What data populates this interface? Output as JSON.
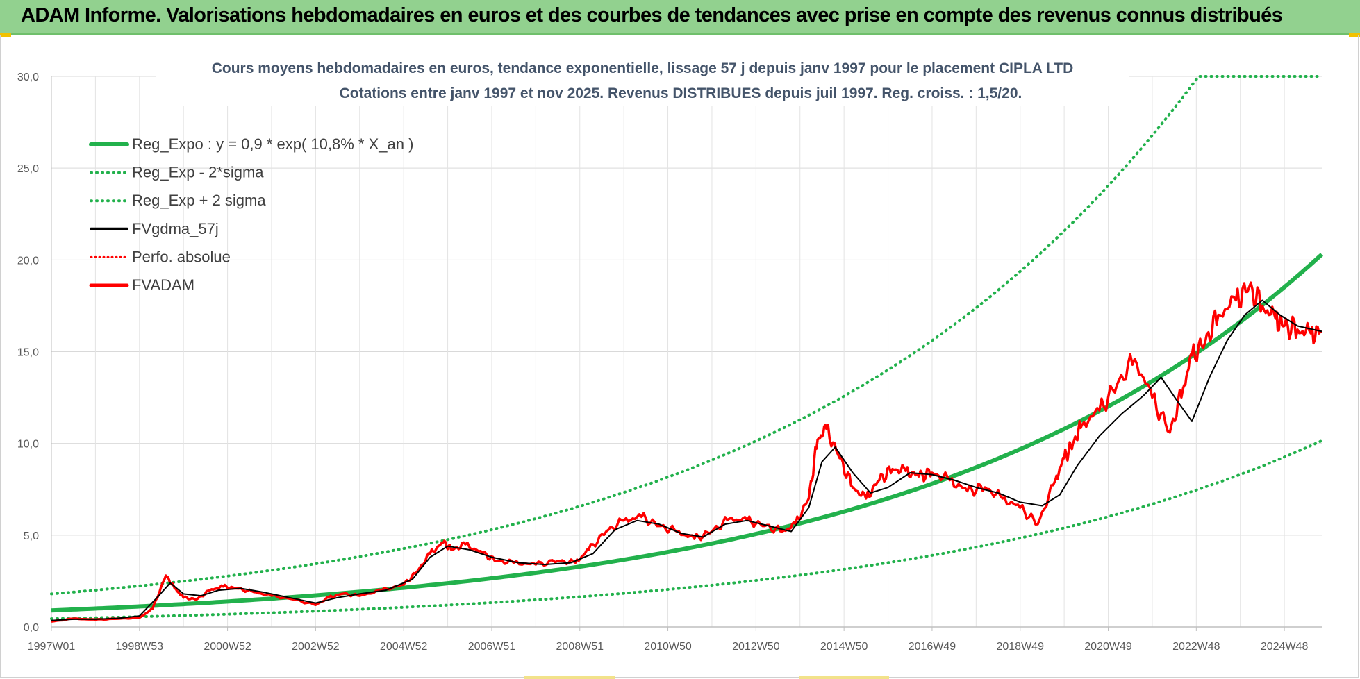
{
  "header": {
    "title": "ADAM Informe. Valorisations hebdomadaires en euros et des courbes de tendances avec prise en compte des revenus connus distribués"
  },
  "chart_data": {
    "type": "line",
    "title": "Cours moyens hebdomadaires en euros, tendance exponentielle, lissage 57 j depuis janv 1997 pour le placement CIPLA LTD",
    "subtitle": "Cotations entre janv 1997 et nov 2025. Revenus DISTRIBUES depuis juil 1997. Reg. croiss. : 1,5/20.",
    "xlabel": "",
    "ylabel": "",
    "ylim": [
      0,
      30
    ],
    "xlim": [
      1997.0,
      2025.85
    ],
    "y_ticks": [
      "0,0",
      "5,0",
      "10,0",
      "15,0",
      "20,0",
      "25,0",
      "30,0"
    ],
    "x_tick_labels": [
      "1997W01",
      "1998W53",
      "2000W52",
      "2002W52",
      "2004W52",
      "2006W51",
      "2008W51",
      "2010W50",
      "2012W50",
      "2014W50",
      "2016W49",
      "2018W49",
      "2020W49",
      "2022W48",
      "2024W48"
    ],
    "grid": true,
    "legend_position": "top-left",
    "colors": {
      "reg": "#22b14c",
      "price": "#ff0000",
      "smooth": "#000000"
    },
    "legend": [
      {
        "label": "Reg_Expo : y = 0,9 * exp( 10,8% *  X_an )",
        "style": "solid-green"
      },
      {
        "label": "Reg_Exp - 2*sigma",
        "style": "dotted-green"
      },
      {
        "label": "Reg_Exp + 2 sigma",
        "style": "dotted-green"
      },
      {
        "label": "FVgdma_57j",
        "style": "solid-black"
      },
      {
        "label": "Perfo. absolue",
        "style": "dotted-red"
      },
      {
        "label": "FVADAM",
        "style": "solid-red"
      }
    ],
    "regression": {
      "a": 0.9,
      "rate": 0.108,
      "sigma_factor_low": 0.5,
      "sigma_factor_high": 2.0,
      "cap": 30
    },
    "series": [
      {
        "name": "FVADAM",
        "x": [
          1997.0,
          1997.5,
          1998.0,
          1998.5,
          1999.0,
          1999.3,
          1999.6,
          1999.8,
          2000.0,
          2000.3,
          2000.6,
          2000.9,
          2001.2,
          2001.6,
          2002.0,
          2002.5,
          2003.0,
          2003.3,
          2003.6,
          2004.0,
          2004.5,
          2005.0,
          2005.3,
          2005.6,
          2005.9,
          2006.1,
          2006.4,
          2006.8,
          2007.1,
          2007.5,
          2008.0,
          2008.5,
          2008.9,
          2009.2,
          2009.6,
          2010.0,
          2010.4,
          2010.8,
          2011.2,
          2011.6,
          2012.0,
          2012.4,
          2012.8,
          2013.2,
          2013.6,
          2013.9,
          2014.2,
          2014.4,
          2014.6,
          2014.9,
          2015.2,
          2015.5,
          2015.8,
          2016.1,
          2016.4,
          2016.7,
          2017.0,
          2017.4,
          2017.8,
          2018.2,
          2018.6,
          2019.0,
          2019.4,
          2019.8,
          2020.0,
          2020.2,
          2020.4,
          2020.8,
          2021.2,
          2021.6,
          2022.0,
          2022.4,
          2022.7,
          2022.9,
          2023.2,
          2023.5,
          2023.9,
          2024.2,
          2024.5,
          2024.8,
          2025.0,
          2025.3,
          2025.6,
          2025.85
        ],
        "values": [
          0.3,
          0.45,
          0.4,
          0.45,
          0.5,
          1.0,
          2.8,
          2.1,
          1.6,
          1.5,
          2.0,
          2.2,
          2.1,
          1.9,
          1.7,
          1.5,
          1.2,
          1.6,
          1.8,
          1.7,
          2.0,
          2.3,
          3.0,
          4.0,
          4.6,
          4.2,
          4.5,
          4.0,
          3.6,
          3.5,
          3.4,
          3.6,
          3.5,
          4.2,
          5.2,
          5.8,
          6.0,
          5.5,
          5.2,
          4.8,
          5.2,
          5.9,
          5.8,
          5.5,
          5.2,
          5.6,
          7.0,
          10.2,
          10.8,
          9.2,
          7.6,
          7.0,
          8.0,
          8.6,
          8.5,
          8.2,
          8.4,
          8.0,
          7.4,
          7.6,
          7.0,
          6.5,
          5.6,
          8.0,
          9.2,
          10.0,
          11.0,
          11.8,
          13.2,
          14.6,
          12.5,
          10.6,
          13.0,
          14.8,
          15.5,
          17.0,
          17.8,
          18.5,
          17.5,
          16.8,
          16.4,
          16.2,
          16.0,
          16.1
        ]
      },
      {
        "name": "FVgdma_57j",
        "x": [
          1997.0,
          1997.5,
          1998.0,
          1998.5,
          1999.0,
          1999.4,
          1999.7,
          2000.0,
          2000.4,
          2000.8,
          2001.3,
          2001.8,
          2002.4,
          2003.0,
          2003.5,
          2004.0,
          2004.6,
          2005.2,
          2005.6,
          2006.0,
          2006.5,
          2007.0,
          2007.6,
          2008.2,
          2008.8,
          2009.3,
          2009.8,
          2010.3,
          2010.8,
          2011.3,
          2011.8,
          2012.3,
          2012.8,
          2013.3,
          2013.8,
          2014.2,
          2014.5,
          2014.8,
          2015.2,
          2015.6,
          2016.0,
          2016.5,
          2017.0,
          2017.5,
          2018.0,
          2018.5,
          2019.0,
          2019.5,
          2019.9,
          2020.3,
          2020.8,
          2021.3,
          2021.8,
          2022.2,
          2022.6,
          2022.9,
          2023.3,
          2023.7,
          2024.1,
          2024.5,
          2024.9,
          2025.3,
          2025.85
        ],
        "values": [
          0.35,
          0.42,
          0.42,
          0.47,
          0.6,
          1.6,
          2.4,
          1.8,
          1.7,
          2.0,
          2.1,
          1.9,
          1.6,
          1.3,
          1.6,
          1.8,
          2.0,
          2.6,
          3.8,
          4.4,
          4.2,
          3.8,
          3.5,
          3.4,
          3.5,
          4.0,
          5.3,
          5.8,
          5.6,
          5.1,
          4.9,
          5.6,
          5.8,
          5.5,
          5.2,
          6.5,
          9.0,
          9.8,
          8.4,
          7.3,
          7.6,
          8.4,
          8.3,
          8.0,
          7.6,
          7.3,
          6.8,
          6.6,
          7.2,
          8.8,
          10.4,
          11.6,
          12.6,
          13.6,
          12.2,
          11.2,
          13.6,
          15.6,
          17.0,
          17.8,
          17.0,
          16.4,
          16.1
        ]
      }
    ]
  }
}
